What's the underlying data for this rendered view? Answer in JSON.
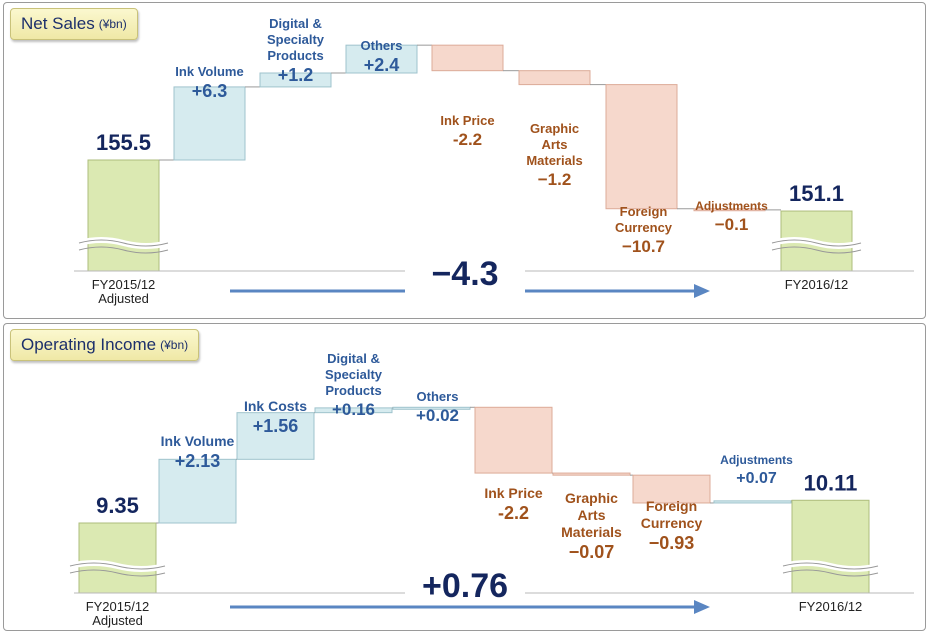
{
  "colors": {
    "increase": "#d6ebef",
    "decrease": "#f6d8cc",
    "total": "#dbe9b2",
    "label_increase": "#2e5a9a",
    "label_decrease": "#a0521c",
    "label_total": "#14265e",
    "arrow": "#5a86c2",
    "title_box": "#f5f0bd"
  },
  "chart_data": [
    {
      "type": "waterfall",
      "title": "Net Sales",
      "unit": "(¥bn)",
      "start": {
        "label": [
          "FY2015/12",
          "Adjusted"
        ],
        "value": 155.5,
        "value_text": "155.5"
      },
      "end": {
        "label": [
          "FY2016/12"
        ],
        "value": 151.1,
        "value_text": "151.1"
      },
      "steps": [
        {
          "name": [
            "Ink Volume"
          ],
          "value": 6.3,
          "value_text": "+6.3"
        },
        {
          "name": [
            "Digital &",
            "Specialty",
            "Products"
          ],
          "value": 1.2,
          "value_text": "+1.2"
        },
        {
          "name": [
            "Others"
          ],
          "value": 2.4,
          "value_text": "+2.4"
        },
        {
          "name": [
            "Ink Price"
          ],
          "value": -2.2,
          "value_text": "-2.2"
        },
        {
          "name": [
            "Graphic",
            "Arts",
            "Materials"
          ],
          "value": -1.2,
          "value_text": "−1.2"
        },
        {
          "name": [
            "Foreign",
            "Currency"
          ],
          "value": -10.7,
          "value_text": "−10.7"
        },
        {
          "name": [
            "Adjustments"
          ],
          "value": -0.1,
          "value_text": "−0.1"
        }
      ],
      "total_change": -4.3,
      "total_change_text": "−4.3",
      "axis_break": true
    },
    {
      "type": "waterfall",
      "title": "Operating Income",
      "unit": "(¥bn)",
      "start": {
        "label": [
          "FY2015/12",
          "Adjusted"
        ],
        "value": 9.35,
        "value_text": "9.35"
      },
      "end": {
        "label": [
          "FY2016/12"
        ],
        "value": 10.11,
        "value_text": "10.11"
      },
      "steps": [
        {
          "name": [
            "Ink Volume"
          ],
          "value": 2.13,
          "value_text": "+2.13"
        },
        {
          "name": [
            "Ink Costs"
          ],
          "value": 1.56,
          "value_text": "+1.56"
        },
        {
          "name": [
            "Digital &",
            "Specialty",
            "Products"
          ],
          "value": 0.16,
          "value_text": "+0.16"
        },
        {
          "name": [
            "Others"
          ],
          "value": 0.02,
          "value_text": "+0.02"
        },
        {
          "name": [
            "Ink Price"
          ],
          "value": -2.2,
          "value_text": "-2.2"
        },
        {
          "name": [
            "Graphic",
            "Arts",
            "Materials"
          ],
          "value": -0.07,
          "value_text": "−0.07"
        },
        {
          "name": [
            "Foreign",
            "Currency"
          ],
          "value": -0.93,
          "value_text": "−0.93"
        },
        {
          "name": [
            "Adjustments"
          ],
          "value": 0.07,
          "value_text": "+0.07"
        }
      ],
      "total_change": 0.76,
      "total_change_text": "+0.76",
      "axis_break": true
    }
  ]
}
